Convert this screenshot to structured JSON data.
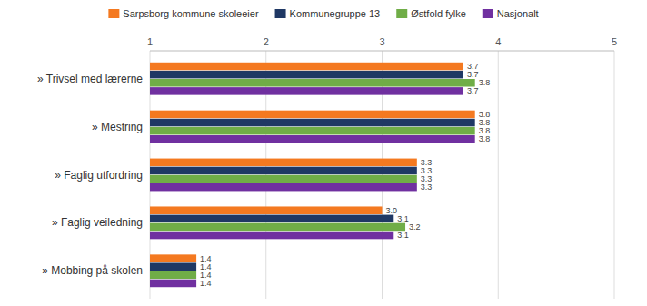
{
  "chart_data": {
    "type": "bar",
    "orientation": "horizontal",
    "categories": [
      "» Trivsel med lærerne",
      "» Mestring",
      "» Faglig utfordring",
      "» Faglig veiledning",
      "» Mobbing på skolen"
    ],
    "series": [
      {
        "name": "Sarpsborg kommune skoleeier",
        "color": "#F47920",
        "values": [
          3.7,
          3.8,
          3.3,
          3.0,
          1.4
        ],
        "value_labels": [
          "3.7",
          "3.8",
          "3.3",
          "3.0",
          "1.4"
        ]
      },
      {
        "name": "Kommunegruppe 13",
        "color": "#1F3864",
        "values": [
          3.7,
          3.8,
          3.3,
          3.1,
          1.4
        ],
        "value_labels": [
          "3.7",
          "3.8",
          "3.3",
          "3.1",
          "1.4"
        ]
      },
      {
        "name": "Østfold fylke",
        "color": "#70AD47",
        "values": [
          3.8,
          3.8,
          3.3,
          3.2,
          1.4
        ],
        "value_labels": [
          "3.8",
          "3.8",
          "3.3",
          "3.2",
          "1.4"
        ]
      },
      {
        "name": "Nasjonalt",
        "color": "#7030A0",
        "values": [
          3.7,
          3.8,
          3.3,
          3.1,
          1.4
        ],
        "value_labels": [
          "3.7",
          "3.8",
          "3.3",
          "3.1",
          "1.4"
        ]
      }
    ],
    "xlim": [
      1,
      5
    ],
    "xticks": [
      1,
      2,
      3,
      4,
      5
    ],
    "grid": true,
    "data_labels": true,
    "legend": "top"
  }
}
